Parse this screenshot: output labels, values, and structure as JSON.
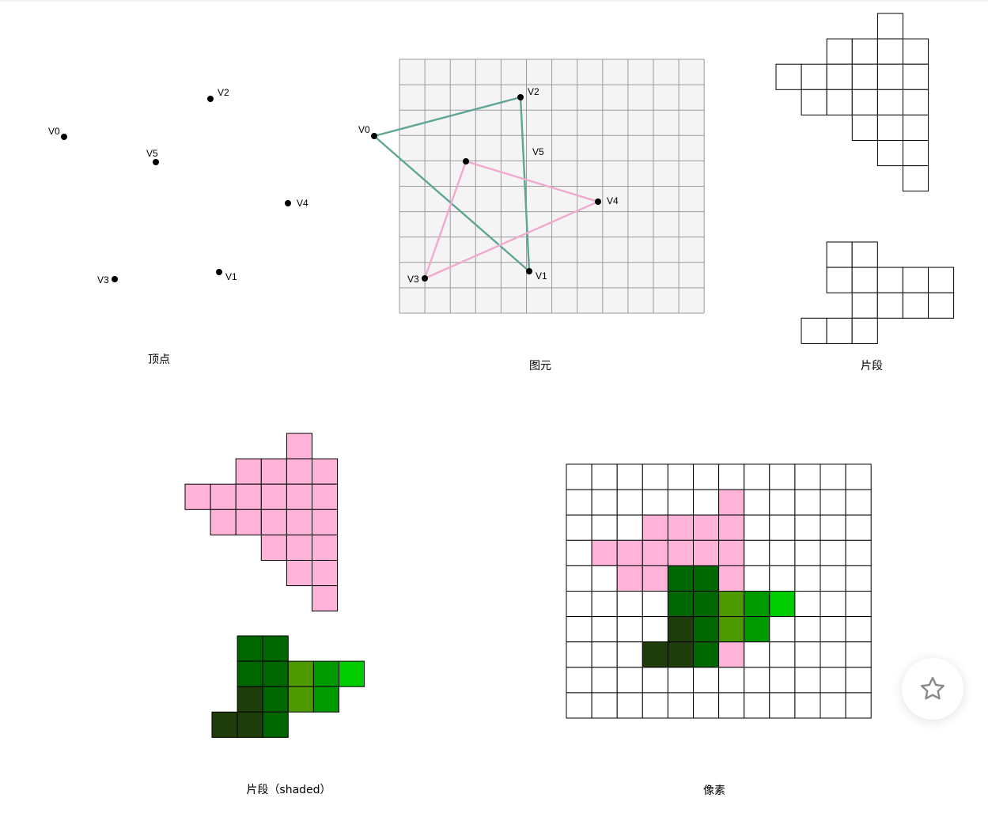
{
  "captions": {
    "vertices": "顶点",
    "primitives": "图元",
    "fragments": "片段",
    "shaded": "片段（shaded）",
    "pixels": "像素"
  },
  "vertex_labels": [
    "V0",
    "V1",
    "V2",
    "V3",
    "V4",
    "V5"
  ],
  "colors": {
    "grid_fill": "#f4f4f4",
    "grid_line": "#9a9a9a",
    "triangle_a": "#5ea596",
    "triangle_b": "#f2a9cf",
    "pink": "#ffb3d9",
    "green_darkest": "#1f3d0a",
    "green_dark": "#006600",
    "green_olive": "#4d9900",
    "green_mid": "#009900",
    "green_bright": "#00cc00"
  },
  "fragments_a": [
    "....X",
    "..XXXX",
    "XXXXXX",
    ".XXXXX",
    "...XXX",
    "....XX",
    ".....X"
  ],
  "fragments_b": [
    ".XX",
    ".XXXXX",
    "..XXXX",
    "XXX"
  ],
  "shaded_pink": [
    "....P",
    "..PPPP",
    "PPPPPP",
    ".PPPPP",
    "...PPP",
    "....PP",
    ".....P"
  ],
  "shaded_green": [
    ".DD",
    ".DDOMB",
    ".KDOM",
    "KKD"
  ],
  "pixel_grid": [
    "............",
    "......P.....",
    "...PPPP.....",
    ".PPPPPP.....",
    "..PPDDP.....",
    "....DDOMB...",
    "....KDOM....",
    "...KKDP.....",
    "............",
    "............"
  ],
  "favorite_button": {
    "icon": "star-icon"
  }
}
